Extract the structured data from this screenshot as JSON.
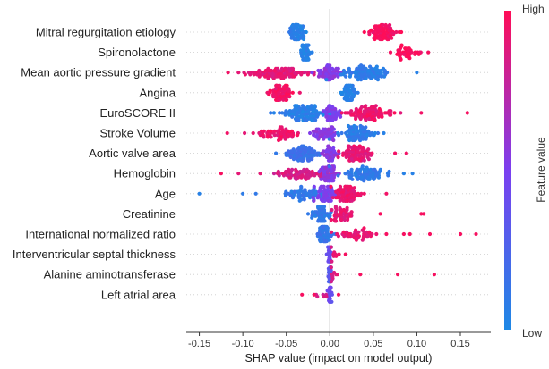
{
  "chart_data": {
    "type": "scatter",
    "subtype": "shap-beeswarm",
    "xlabel": "SHAP value (impact on model output)",
    "xlim": [
      -0.165,
      0.185
    ],
    "xticks": [
      -0.15,
      -0.1,
      -0.05,
      0.0,
      0.05,
      0.1,
      0.15
    ],
    "xtick_labels": [
      "-0.15",
      "-0.10",
      "-0.05",
      "0.00",
      "0.05",
      "0.10",
      "0.15"
    ],
    "colorbar": {
      "title": "Feature value",
      "high": "High",
      "low": "Low",
      "color_low": "#1e88e5",
      "color_high": "#ff0d57"
    },
    "features": [
      {
        "name": "Mitral regurgitation etiology",
        "clusters": [
          {
            "center": -0.037,
            "spread": 0.008,
            "n": 70,
            "color": 0.05
          },
          {
            "center": 0.06,
            "spread": 0.014,
            "n": 75,
            "color": 0.97
          }
        ]
      },
      {
        "name": "Spironolactone",
        "clusters": [
          {
            "center": -0.028,
            "spread": 0.005,
            "n": 50,
            "color": 0.05
          },
          {
            "center": 0.088,
            "spread": 0.014,
            "n": 40,
            "color": 0.97
          }
        ]
      },
      {
        "name": "Mean aortic pressure gradient",
        "clusters": [
          {
            "center": -0.055,
            "spread": 0.03,
            "n": 95,
            "color": 0.9
          },
          {
            "center": 0.0,
            "spread": 0.01,
            "n": 60,
            "color": 0.55
          },
          {
            "center": 0.04,
            "spread": 0.022,
            "n": 90,
            "color": 0.08
          }
        ],
        "outliers": [
          [
            -0.117,
            0.95
          ],
          [
            -0.105,
            0.9
          ],
          [
            0.1,
            0.05
          ]
        ]
      },
      {
        "name": "Angina",
        "clusters": [
          {
            "center": -0.058,
            "spread": 0.012,
            "n": 75,
            "color": 0.96
          },
          {
            "center": 0.022,
            "spread": 0.007,
            "n": 65,
            "color": 0.05
          }
        ]
      },
      {
        "name": "EuroSCORE II",
        "clusters": [
          {
            "center": -0.03,
            "spread": 0.02,
            "n": 110,
            "color": 0.06
          },
          {
            "center": 0.0,
            "spread": 0.01,
            "n": 40,
            "color": 0.5
          },
          {
            "center": 0.045,
            "spread": 0.025,
            "n": 90,
            "color": 0.93
          }
        ],
        "outliers": [
          [
            -0.068,
            0.1
          ],
          [
            0.158,
            0.97
          ],
          [
            0.105,
            0.95
          ]
        ]
      },
      {
        "name": "Stroke Volume",
        "clusters": [
          {
            "center": -0.06,
            "spread": 0.022,
            "n": 60,
            "color": 0.94
          },
          {
            "center": -0.005,
            "spread": 0.012,
            "n": 50,
            "color": 0.55
          },
          {
            "center": 0.03,
            "spread": 0.018,
            "n": 80,
            "color": 0.08
          }
        ],
        "outliers": [
          [
            -0.118,
            0.95
          ],
          [
            -0.098,
            0.9
          ],
          [
            0.062,
            0.05
          ]
        ]
      },
      {
        "name": "Aortic valve area",
        "clusters": [
          {
            "center": -0.03,
            "spread": 0.015,
            "n": 80,
            "color": 0.15
          },
          {
            "center": 0.0,
            "spread": 0.008,
            "n": 40,
            "color": 0.55
          },
          {
            "center": 0.03,
            "spread": 0.014,
            "n": 80,
            "color": 0.9
          }
        ],
        "outliers": [
          [
            -0.062,
            0.1
          ],
          [
            0.075,
            0.95
          ],
          [
            0.088,
            0.95
          ]
        ]
      },
      {
        "name": "Hemoglobin",
        "clusters": [
          {
            "center": -0.035,
            "spread": 0.025,
            "n": 70,
            "color": 0.85
          },
          {
            "center": 0.0,
            "spread": 0.01,
            "n": 55,
            "color": 0.55
          },
          {
            "center": 0.04,
            "spread": 0.018,
            "n": 80,
            "color": 0.1
          }
        ],
        "outliers": [
          [
            -0.125,
            0.97
          ],
          [
            -0.105,
            0.9
          ],
          [
            0.085,
            0.05
          ],
          [
            0.095,
            0.05
          ]
        ]
      },
      {
        "name": "Age",
        "clusters": [
          {
            "center": -0.03,
            "spread": 0.02,
            "n": 60,
            "color": 0.1
          },
          {
            "center": -0.005,
            "spread": 0.01,
            "n": 55,
            "color": 0.5
          },
          {
            "center": 0.02,
            "spread": 0.012,
            "n": 80,
            "color": 0.92
          }
        ],
        "outliers": [
          [
            -0.15,
            0.05
          ],
          [
            -0.1,
            0.08
          ],
          [
            -0.085,
            0.1
          ],
          [
            0.065,
            0.95
          ]
        ]
      },
      {
        "name": "Creatinine",
        "clusters": [
          {
            "center": -0.008,
            "spread": 0.008,
            "n": 55,
            "color": 0.1
          },
          {
            "center": 0.015,
            "spread": 0.01,
            "n": 45,
            "color": 0.9
          }
        ],
        "outliers": [
          [
            -0.025,
            0.1
          ],
          [
            0.058,
            0.97
          ],
          [
            0.105,
            0.97
          ],
          [
            0.108,
            0.97
          ]
        ]
      },
      {
        "name": "International normalized ratio",
        "clusters": [
          {
            "center": -0.006,
            "spread": 0.006,
            "n": 75,
            "color": 0.12
          },
          {
            "center": 0.03,
            "spread": 0.015,
            "n": 45,
            "color": 0.92
          }
        ],
        "outliers": [
          [
            0.065,
            0.97
          ],
          [
            0.085,
            0.97
          ],
          [
            0.092,
            0.97
          ],
          [
            0.115,
            0.97
          ],
          [
            0.15,
            0.97
          ],
          [
            0.168,
            0.97
          ]
        ]
      },
      {
        "name": "Interventricular septal thickness",
        "clusters": [
          {
            "center": 0.0,
            "spread": 0.002,
            "n": 30,
            "color": 0.4
          },
          {
            "center": 0.006,
            "spread": 0.004,
            "n": 8,
            "color": 0.9
          }
        ],
        "outliers": [
          [
            0.018,
            0.97
          ]
        ]
      },
      {
        "name": "Alanine aminotransferase",
        "clusters": [
          {
            "center": 0.0,
            "spread": 0.002,
            "n": 30,
            "color": 0.3
          },
          {
            "center": 0.005,
            "spread": 0.004,
            "n": 8,
            "color": 0.85
          }
        ],
        "outliers": [
          [
            0.035,
            0.97
          ],
          [
            0.078,
            0.97
          ],
          [
            0.12,
            0.97
          ]
        ]
      },
      {
        "name": "Left atrial area",
        "clusters": [
          {
            "center": 0.0,
            "spread": 0.002,
            "n": 25,
            "color": 0.4
          },
          {
            "center": -0.008,
            "spread": 0.005,
            "n": 6,
            "color": 0.85
          }
        ],
        "outliers": [
          [
            -0.032,
            0.97
          ],
          [
            -0.018,
            0.97
          ],
          [
            0.01,
            0.97
          ]
        ]
      }
    ]
  }
}
